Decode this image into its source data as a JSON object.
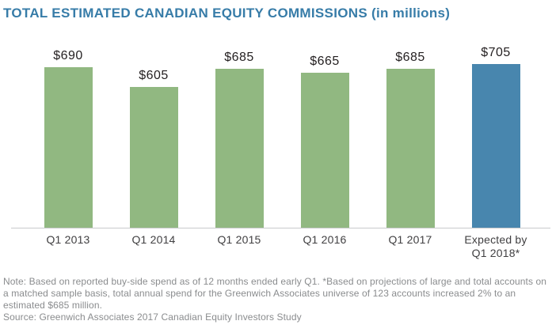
{
  "title": "TOTAL ESTIMATED CANADIAN EQUITY COMMISSIONS (in millions)",
  "chart_data": {
    "type": "bar",
    "title": "TOTAL ESTIMATED CANADIAN EQUITY COMMISSIONS (in millions)",
    "categories": [
      "Q1 2013",
      "Q1 2014",
      "Q1 2015",
      "Q1 2016",
      "Q1 2017",
      "Expected by Q1 2018*"
    ],
    "values": [
      690,
      605,
      685,
      665,
      685,
      705
    ],
    "value_labels": [
      "$690",
      "$605",
      "$685",
      "$665",
      "$685",
      "$705"
    ],
    "xlabel": "",
    "ylabel": "",
    "ylim": [
      0,
      760
    ],
    "grid": false,
    "legend": "none",
    "highlight_index": 5,
    "bar_color": "#91B881",
    "highlight_color": "#4886AE"
  },
  "colors": {
    "title_text": "#377CA8",
    "axis_line": "#C9CACC",
    "value_label_text": "#231F20",
    "category_label_text": "#414042",
    "footnote_text": "#8A8C8E"
  },
  "footnote": {
    "note": "Note: Based on reported buy-side spend as of 12 months ended early Q1. *Based on projections of large and total accounts on a matched sample basis, total annual spend for the Greenwich Associates universe of 123 accounts increased 2% to an estimated $685 million.",
    "source": "Source: Greenwich Associates 2017 Canadian Equity Investors Study"
  }
}
